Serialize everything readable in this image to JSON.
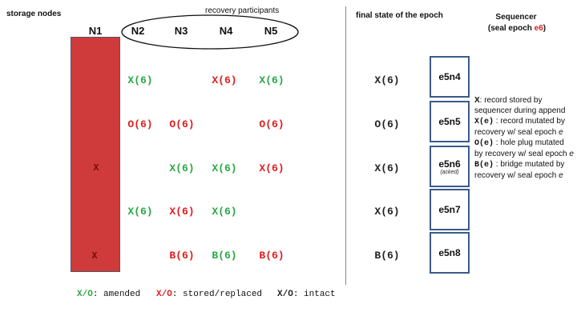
{
  "left_title": "storage nodes",
  "participants_label": "recovery participants",
  "nodes": [
    "N1",
    "N2",
    "N3",
    "N4",
    "N5"
  ],
  "n1_marks": [
    "X",
    "X"
  ],
  "grid": {
    "row1": [
      "X(6)",
      "",
      "X(6)",
      "X(6)"
    ],
    "row2": [
      "O(6)",
      "O(6)",
      "",
      "O(6)"
    ],
    "row3": [
      "",
      "X(6)",
      "X(6)",
      "X(6)"
    ],
    "row4": [
      "X(6)",
      "X(6)",
      "X(6)",
      ""
    ],
    "row5": [
      "",
      "B(6)",
      "B(6)",
      "B(6)"
    ]
  },
  "colors": {
    "amended": "#27a745",
    "stored_replaced": "#e01b1b",
    "intact": "#222222",
    "n1_bar": "#cf3b3b",
    "sequencer_border": "#3a5a8a"
  },
  "final_title": "final state of the epoch",
  "final_values": [
    "X(6)",
    "O(6)",
    "X(6)",
    "X(6)",
    "B(6)"
  ],
  "sequencer_title": "Sequencer",
  "sequencer_seal_prefix": "(seal epoch ",
  "sequencer_seal_epoch": "e6",
  "sequencer_seal_suffix": ")",
  "sequencer_slots": [
    "e5n4",
    "e5n5",
    "e5n6",
    "e5n7",
    "e5n8"
  ],
  "acked_note": "(acked)",
  "legend_right": {
    "x_key": "X",
    "x_text": ": record stored by sequencer during append",
    "xe_key": "X(e)",
    "xe_text": " : record mutated by recovery w/ seal epoch ",
    "oe_key": "O(e)",
    "oe_text": " : hole plug mutated by recovery w/ seal epoch ",
    "be_key": "B(e)",
    "be_text": " : bridge mutated by recovery w/ seal epoch ",
    "e_var": "e"
  },
  "legend_bottom": {
    "amended_key": "X/O",
    "amended_text": ": amended",
    "stored_key": "X/O",
    "stored_text": ": stored/replaced",
    "intact_key": "X/O",
    "intact_text": ": intact"
  }
}
